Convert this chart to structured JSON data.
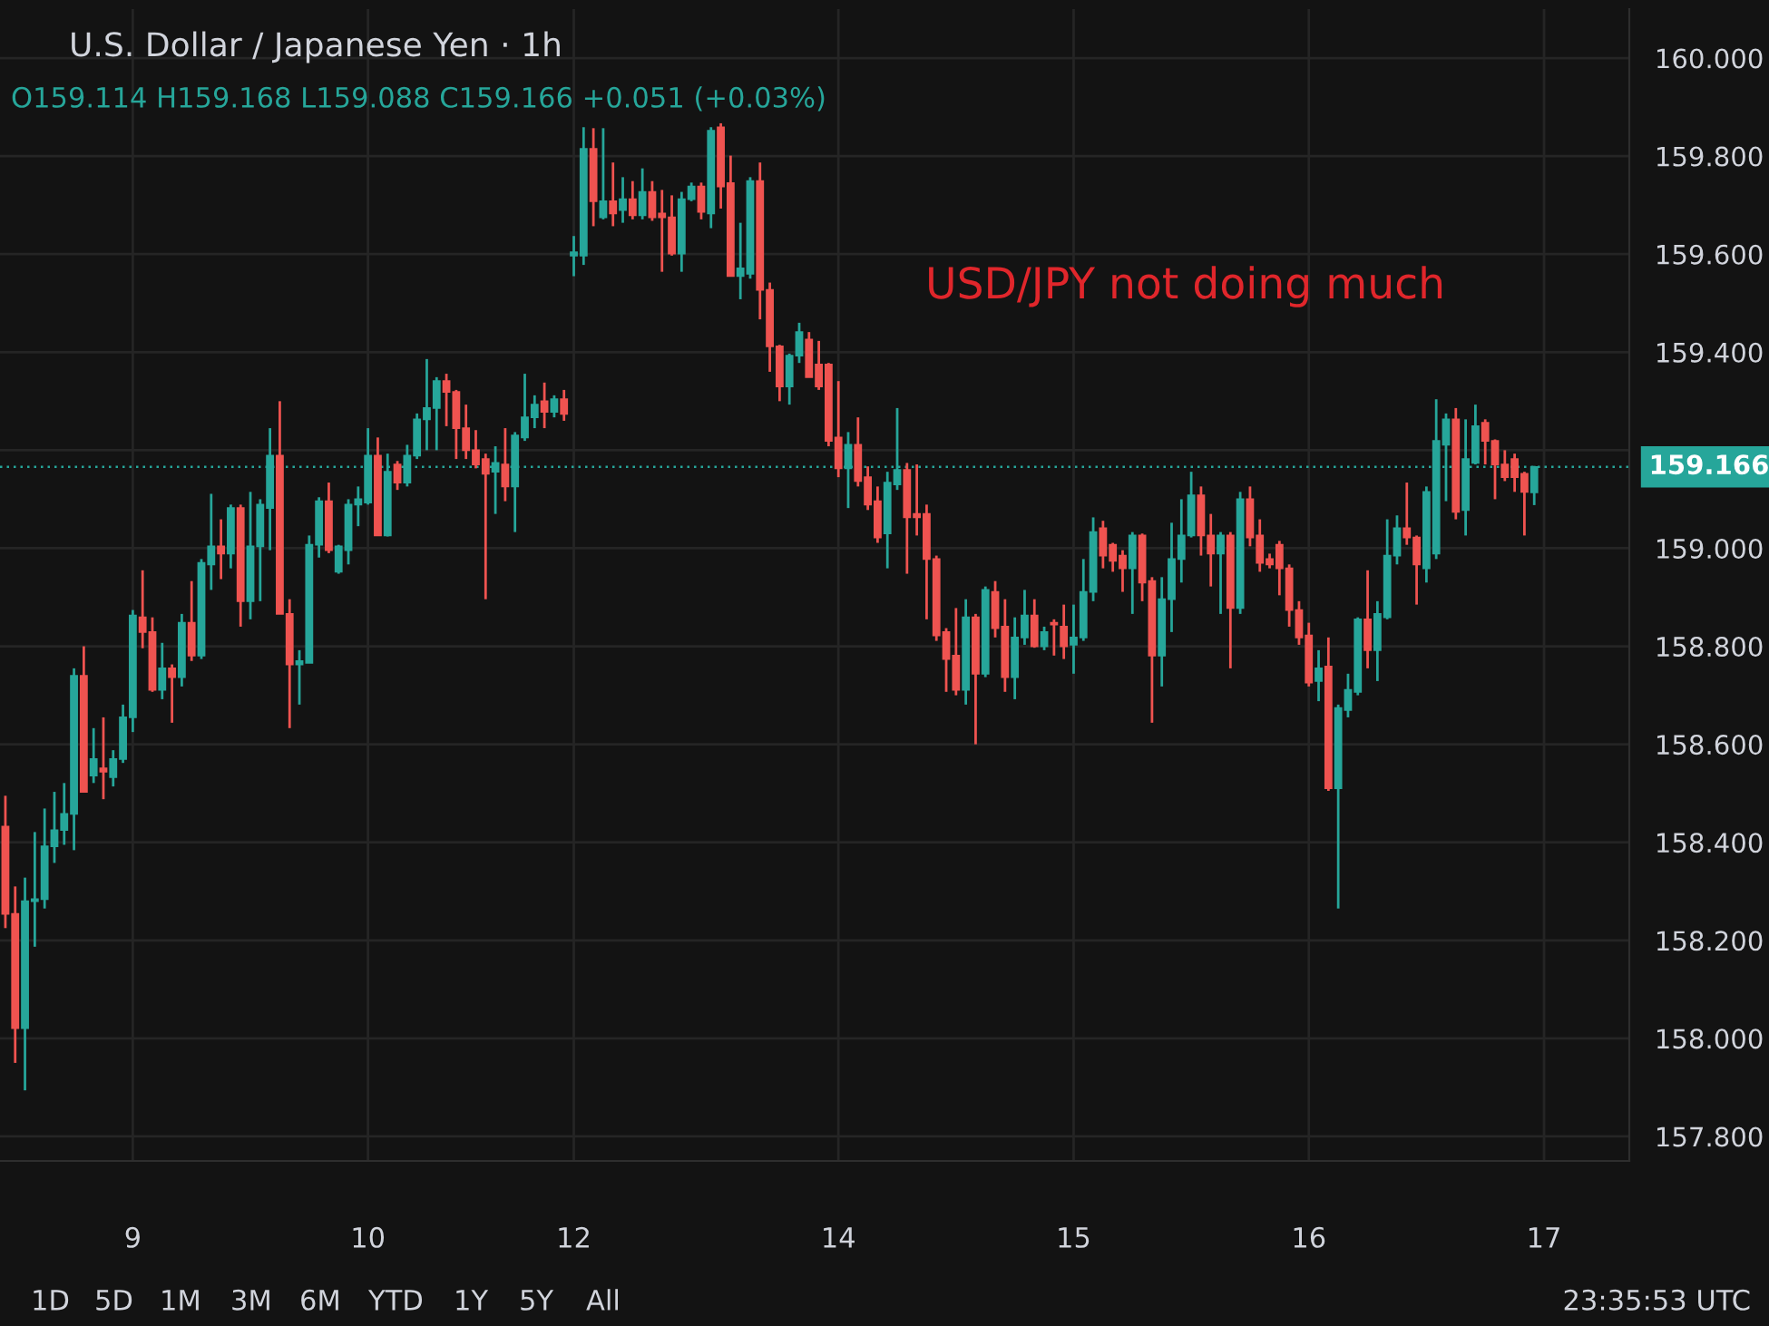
{
  "chart_data": {
    "type": "candlestick",
    "title": "U.S. Dollar / Japanese Yen · 1h",
    "subtitle": "O159.114 H159.168 L159.088 C159.166 +0.051 (+0.03%)",
    "annotations": [
      "USD/JPY not doing much",
      "1D",
      "5D",
      "1M",
      "3M",
      "6M",
      "YTD",
      "1Y",
      "5Y",
      "All",
      "23:35:53 UTC"
    ],
    "colors": [
      "#ef5350",
      "#ef5350",
      "#26a69a",
      "#26a69a",
      "#26a69a",
      "#26a69a",
      "#26a69a",
      "#26a69a",
      "#ef5350",
      "#26a69a",
      "#ef5350",
      "#26a69a",
      "#26a69a",
      "#26a69a",
      "#ef5350",
      "#ef5350",
      "#26a69a",
      "#ef5350",
      "#26a69a",
      "#ef5350",
      "#26a69a",
      "#26a69a",
      "#ef5350",
      "#26a69a",
      "#ef5350",
      "#26a69a",
      "#26a69a",
      "#26a69a",
      "#ef5350",
      "#ef5350",
      "#26a69a",
      "#26a69a",
      "#26a69a",
      "#ef5350",
      "#26a69a",
      "#26a69a",
      "#26a69a",
      "#26a69a",
      "#ef5350",
      "#26a69a",
      "#ef5350",
      "#26a69a",
      "#26a69a",
      "#26a69a",
      "#26a69a",
      "#ef5350",
      "#ef5350",
      "#ef5350",
      "#ef5350",
      "#ef5350",
      "#26a69a",
      "#ef5350",
      "#26a69a",
      "#26a69a",
      "#26a69a",
      "#ef5350",
      "#26a69a",
      "#ef5350",
      "#26a69a",
      "#26a69a",
      "#ef5350",
      "#26a69a",
      "#ef5350",
      "#26a69a",
      "#ef5350",
      "#26a69a",
      "#ef5350",
      "#ef5350",
      "#ef5350",
      "#26a69a",
      "#26a69a",
      "#ef5350",
      "#26a69a",
      "#ef5350",
      "#ef5350",
      "#26a69a",
      "#26a69a",
      "#ef5350",
      "#ef5350",
      "#ef5350",
      "#26a69a",
      "#26a69a",
      "#ef5350",
      "#ef5350",
      "#ef5350",
      "#ef5350",
      "#26a69a",
      "#ef5350",
      "#ef5350",
      "#ef5350",
      "#26a69a",
      "#26a69a",
      "#ef5350",
      "#ef5350",
      "#ef5350",
      "#ef5350",
      "#ef5350",
      "#ef5350",
      "#26a69a",
      "#ef5350",
      "#26a69a",
      "#ef5350",
      "#ef5350",
      "#26a69a",
      "#26a69a",
      "#ef5350",
      "#26a69a",
      "#ef5350",
      "#ef5350",
      "#26a69a",
      "#26a69a",
      "#26a69a",
      "#ef5350",
      "#ef5350",
      "#ef5350",
      "#26a69a",
      "#ef5350",
      "#ef5350",
      "#26a69a",
      "#26a69a",
      "#26a69a",
      "#26a69a",
      "#ef5350",
      "#ef5350",
      "#26a69a",
      "#ef5350",
      "#26a69a",
      "#ef5350",
      "#ef5350",
      "#ef5350",
      "#ef5350",
      "#ef5350",
      "#ef5350",
      "#ef5350",
      "#26a69a",
      "#ef5350",
      "#26a69a",
      "#26a69a",
      "#26a69a",
      "#ef5350",
      "#26a69a",
      "#26a69a",
      "#26a69a",
      "#ef5350",
      "#ef5350",
      "#26a69a",
      "#26a69a",
      "#26a69a",
      "#ef5350",
      "#26a69a",
      "#26a69a",
      "#ef5350",
      "#ef5350",
      "#ef5350",
      "#ef5350",
      "#ef5350",
      "#26a69a",
      null
    ],
    "grid": true,
    "ylim": [
      157.75,
      160.1
    ],
    "yticks": [
      {
        "value": 157.8,
        "label": "157.800"
      },
      {
        "value": 158.0,
        "label": "158.000"
      },
      {
        "value": 158.2,
        "label": "158.200"
      },
      {
        "value": 158.4,
        "label": "158.400"
      },
      {
        "value": 158.6,
        "label": "158.600"
      },
      {
        "value": 158.8,
        "label": "158.800"
      },
      {
        "value": 159.0,
        "label": "159.000"
      },
      {
        "value": 159.2,
        "label": null
      },
      {
        "value": 159.4,
        "label": "159.400"
      },
      {
        "value": 159.6,
        "label": "159.600"
      },
      {
        "value": 159.8,
        "label": "159.800"
      },
      {
        "value": 160.0,
        "label": "160.000"
      }
    ],
    "ref_lines": [
      {
        "axis": "y",
        "value": 159.166,
        "label": "159.166",
        "color": "#26a69a",
        "line_style": "dotted"
      }
    ],
    "categories": [
      null,
      null,
      null,
      null,
      null,
      null,
      null,
      null,
      null,
      null,
      null,
      null,
      null,
      "9",
      null,
      null,
      null,
      null,
      null,
      null,
      null,
      null,
      null,
      null,
      null,
      null,
      null,
      null,
      null,
      null,
      null,
      null,
      null,
      null,
      null,
      null,
      null,
      "10",
      null,
      null,
      null,
      null,
      null,
      null,
      null,
      null,
      null,
      null,
      null,
      null,
      null,
      null,
      null,
      null,
      null,
      null,
      null,
      null,
      "12",
      null,
      null,
      null,
      null,
      null,
      null,
      null,
      null,
      null,
      null,
      null,
      null,
      null,
      null,
      null,
      null,
      null,
      null,
      null,
      null,
      null,
      null,
      null,
      null,
      null,
      null,
      "14",
      null,
      null,
      null,
      null,
      null,
      null,
      null,
      null,
      null,
      null,
      null,
      null,
      null,
      null,
      null,
      null,
      null,
      null,
      null,
      null,
      null,
      null,
      null,
      "15",
      null,
      null,
      null,
      null,
      null,
      null,
      null,
      null,
      null,
      null,
      null,
      null,
      null,
      null,
      null,
      null,
      null,
      null,
      null,
      null,
      null,
      null,
      null,
      "16",
      null,
      null,
      null,
      null,
      null,
      null,
      null,
      null,
      null,
      null,
      null,
      null,
      null,
      null,
      null,
      null,
      null,
      null,
      null,
      null,
      null,
      null,
      null,
      "17"
    ],
    "ohlc": [
      [
        158.432,
        158.495,
        158.225,
        158.254
      ],
      [
        158.254,
        158.31,
        157.95,
        158.021
      ],
      [
        158.021,
        158.328,
        157.894,
        158.28
      ],
      [
        158.28,
        158.421,
        158.187,
        158.284
      ],
      [
        158.284,
        158.469,
        158.265,
        158.392
      ],
      [
        158.392,
        158.503,
        158.358,
        158.425
      ],
      [
        158.425,
        158.521,
        158.395,
        158.458
      ],
      [
        158.458,
        158.755,
        158.384,
        158.74
      ],
      [
        158.74,
        158.8,
        158.503,
        158.503
      ],
      [
        158.536,
        158.633,
        158.521,
        158.57
      ],
      [
        158.551,
        158.655,
        158.488,
        158.544
      ],
      [
        158.533,
        158.588,
        158.514,
        158.57
      ],
      [
        158.57,
        158.681,
        158.562,
        158.655
      ],
      [
        158.655,
        158.874,
        158.625,
        158.863
      ],
      [
        158.859,
        158.955,
        158.796,
        158.829
      ],
      [
        158.829,
        158.859,
        158.707,
        158.711
      ],
      [
        158.711,
        158.807,
        158.692,
        158.755
      ],
      [
        158.755,
        158.763,
        158.644,
        158.737
      ],
      [
        158.737,
        158.866,
        158.718,
        158.848
      ],
      [
        158.848,
        158.933,
        158.77,
        158.781
      ],
      [
        158.781,
        158.978,
        158.774,
        158.97
      ],
      [
        158.967,
        159.111,
        158.915,
        159.004
      ],
      [
        159.004,
        159.059,
        158.937,
        158.989
      ],
      [
        158.989,
        159.089,
        158.959,
        159.082
      ],
      [
        159.082,
        159.089,
        158.84,
        158.892
      ],
      [
        158.892,
        159.115,
        158.855,
        159.004
      ],
      [
        159.004,
        159.1,
        158.892,
        159.089
      ],
      [
        159.082,
        159.245,
        158.996,
        159.189
      ],
      [
        159.189,
        159.3,
        158.866,
        158.866
      ],
      [
        158.866,
        158.896,
        158.633,
        158.763
      ],
      [
        158.763,
        158.792,
        158.681,
        158.77
      ],
      [
        158.766,
        159.026,
        158.766,
        159.007
      ],
      [
        159.007,
        159.104,
        158.981,
        159.096
      ],
      [
        159.096,
        159.134,
        158.99,
        158.996
      ],
      [
        158.952,
        159.007,
        158.948,
        159.004
      ],
      [
        158.996,
        159.1,
        158.967,
        159.089
      ],
      [
        159.089,
        159.126,
        159.045,
        159.1
      ],
      [
        159.093,
        159.245,
        159.089,
        159.189
      ],
      [
        159.189,
        159.226,
        159.026,
        159.026
      ],
      [
        159.026,
        159.193,
        159.024,
        159.156
      ],
      [
        159.171,
        159.178,
        159.119,
        159.134
      ],
      [
        159.134,
        159.211,
        159.126,
        159.189
      ],
      [
        159.189,
        159.275,
        159.182,
        159.263
      ],
      [
        159.263,
        159.386,
        159.2,
        159.286
      ],
      [
        159.286,
        159.349,
        159.2,
        159.341
      ],
      [
        159.341,
        159.356,
        159.249,
        159.319
      ],
      [
        159.319,
        159.323,
        159.182,
        159.245
      ],
      [
        159.245,
        159.293,
        159.182,
        159.2
      ],
      [
        159.2,
        159.241,
        159.163,
        159.171
      ],
      [
        159.182,
        159.193,
        158.896,
        159.152
      ],
      [
        159.156,
        159.208,
        159.07,
        159.174
      ],
      [
        159.171,
        159.245,
        159.096,
        159.126
      ],
      [
        159.126,
        159.237,
        159.033,
        159.23
      ],
      [
        159.226,
        159.356,
        159.219,
        159.267
      ],
      [
        159.267,
        159.312,
        159.245,
        159.293
      ],
      [
        159.3,
        159.338,
        159.245,
        159.278
      ],
      [
        159.278,
        159.312,
        159.267,
        159.304
      ],
      [
        159.304,
        159.323,
        159.26,
        159.274
      ],
      [
        159.597,
        159.637,
        159.555,
        159.604
      ],
      [
        159.597,
        159.859,
        159.578,
        159.815
      ],
      [
        159.815,
        159.857,
        159.657,
        159.708
      ],
      [
        159.675,
        159.857,
        159.671,
        159.708
      ],
      [
        159.708,
        159.787,
        159.657,
        159.683
      ],
      [
        159.69,
        159.757,
        159.664,
        159.712
      ],
      [
        159.712,
        159.749,
        159.671,
        159.679
      ],
      [
        159.679,
        159.775,
        159.671,
        159.727
      ],
      [
        159.727,
        159.749,
        159.668,
        159.675
      ],
      [
        159.683,
        159.731,
        159.564,
        159.675
      ],
      [
        159.675,
        159.72,
        159.597,
        159.601
      ],
      [
        159.601,
        159.727,
        159.564,
        159.712
      ],
      [
        159.712,
        159.746,
        159.708,
        159.738
      ],
      [
        159.738,
        159.746,
        159.671,
        159.686
      ],
      [
        159.683,
        159.859,
        159.653,
        159.852
      ],
      [
        159.859,
        159.867,
        159.693,
        159.738
      ],
      [
        159.745,
        159.801,
        159.555,
        159.555
      ],
      [
        159.555,
        159.664,
        159.508,
        159.571
      ],
      [
        159.56,
        159.757,
        159.55,
        159.749
      ],
      [
        159.749,
        159.787,
        159.467,
        159.527
      ],
      [
        159.527,
        159.542,
        159.36,
        159.412
      ],
      [
        159.412,
        159.415,
        159.3,
        159.33
      ],
      [
        159.33,
        159.397,
        159.293,
        159.393
      ],
      [
        159.393,
        159.46,
        159.378,
        159.441
      ],
      [
        159.426,
        159.441,
        159.349,
        159.349
      ],
      [
        159.375,
        159.423,
        159.323,
        159.33
      ],
      [
        159.375,
        159.378,
        159.208,
        159.219
      ],
      [
        159.226,
        159.341,
        159.145,
        159.163
      ],
      [
        159.163,
        159.237,
        159.082,
        159.211
      ],
      [
        159.211,
        159.267,
        159.126,
        159.137
      ],
      [
        159.145,
        159.167,
        159.078,
        159.089
      ],
      [
        159.096,
        159.126,
        159.011,
        159.022
      ],
      [
        159.03,
        159.156,
        158.959,
        159.134
      ],
      [
        159.13,
        159.286,
        159.119,
        159.16
      ],
      [
        159.16,
        159.174,
        158.948,
        159.063
      ],
      [
        159.07,
        159.171,
        159.026,
        159.063
      ],
      [
        159.07,
        159.089,
        158.855,
        158.978
      ],
      [
        158.978,
        158.985,
        158.811,
        158.822
      ],
      [
        158.829,
        158.837,
        158.707,
        158.774
      ],
      [
        158.781,
        158.878,
        158.7,
        158.711
      ],
      [
        158.711,
        158.896,
        158.681,
        158.859
      ],
      [
        158.859,
        158.866,
        158.6,
        158.744
      ],
      [
        158.744,
        158.922,
        158.737,
        158.915
      ],
      [
        158.911,
        158.933,
        158.818,
        158.837
      ],
      [
        158.84,
        158.896,
        158.707,
        158.737
      ],
      [
        158.737,
        158.859,
        158.692,
        158.818
      ],
      [
        158.818,
        158.915,
        158.803,
        158.863
      ],
      [
        158.863,
        158.896,
        158.797,
        158.8
      ],
      [
        158.8,
        158.84,
        158.792,
        158.829
      ],
      [
        158.848,
        158.855,
        158.781,
        158.844
      ],
      [
        158.84,
        158.885,
        158.774,
        158.8
      ],
      [
        158.803,
        158.885,
        158.744,
        158.818
      ],
      [
        158.818,
        158.978,
        158.811,
        158.911
      ],
      [
        158.911,
        159.063,
        158.892,
        159.033
      ],
      [
        159.041,
        159.056,
        158.959,
        158.985
      ],
      [
        159.007,
        159.011,
        158.952,
        158.974
      ],
      [
        158.985,
        158.996,
        158.911,
        158.959
      ],
      [
        158.959,
        159.033,
        158.866,
        159.026
      ],
      [
        159.026,
        159.03,
        158.892,
        158.93
      ],
      [
        158.933,
        158.941,
        158.644,
        158.781
      ],
      [
        158.781,
        158.941,
        158.718,
        158.896
      ],
      [
        158.896,
        159.052,
        158.829,
        158.978
      ],
      [
        158.978,
        159.1,
        158.93,
        159.026
      ],
      [
        159.026,
        159.156,
        159.022,
        159.108
      ],
      [
        159.108,
        159.126,
        158.985,
        159.026
      ],
      [
        159.026,
        159.07,
        158.922,
        158.989
      ],
      [
        158.989,
        159.033,
        158.866,
        159.026
      ],
      [
        159.026,
        159.033,
        158.755,
        158.878
      ],
      [
        158.878,
        159.115,
        158.866,
        159.1
      ],
      [
        159.1,
        159.126,
        159.004,
        159.022
      ],
      [
        159.026,
        159.059,
        158.952,
        158.97
      ],
      [
        158.978,
        158.989,
        158.959,
        158.967
      ],
      [
        159.007,
        159.015,
        158.904,
        158.959
      ],
      [
        158.959,
        158.967,
        158.84,
        158.874
      ],
      [
        158.874,
        158.892,
        158.803,
        158.818
      ],
      [
        158.822,
        158.848,
        158.718,
        158.726
      ],
      [
        158.729,
        158.792,
        158.688,
        158.755
      ],
      [
        158.759,
        158.818,
        158.505,
        158.51
      ],
      [
        158.51,
        158.681,
        158.265,
        158.674
      ],
      [
        158.67,
        158.744,
        158.655,
        158.711
      ],
      [
        158.707,
        158.859,
        158.7,
        158.855
      ],
      [
        158.855,
        158.955,
        158.755,
        158.792
      ],
      [
        158.792,
        158.892,
        158.729,
        158.866
      ],
      [
        158.859,
        159.059,
        158.855,
        158.985
      ],
      [
        158.985,
        159.067,
        158.967,
        159.041
      ],
      [
        159.041,
        159.134,
        159.007,
        159.022
      ],
      [
        159.022,
        159.026,
        158.885,
        158.967
      ],
      [
        158.959,
        159.126,
        158.93,
        159.115
      ],
      [
        158.989,
        159.304,
        158.978,
        159.219
      ],
      [
        159.211,
        159.275,
        159.096,
        159.263
      ],
      [
        159.263,
        159.286,
        159.059,
        159.074
      ],
      [
        159.078,
        159.263,
        159.026,
        159.182
      ],
      [
        159.174,
        159.293,
        159.171,
        159.249
      ],
      [
        159.256,
        159.263,
        159.171,
        159.219
      ],
      [
        159.219,
        159.222,
        159.1,
        159.171
      ],
      [
        159.171,
        159.2,
        159.137,
        159.145
      ],
      [
        159.182,
        159.193,
        159.115,
        159.145
      ],
      [
        159.152,
        159.156,
        159.026,
        159.115
      ],
      [
        159.114,
        159.168,
        159.088,
        159.166
      ],
      null
    ]
  }
}
